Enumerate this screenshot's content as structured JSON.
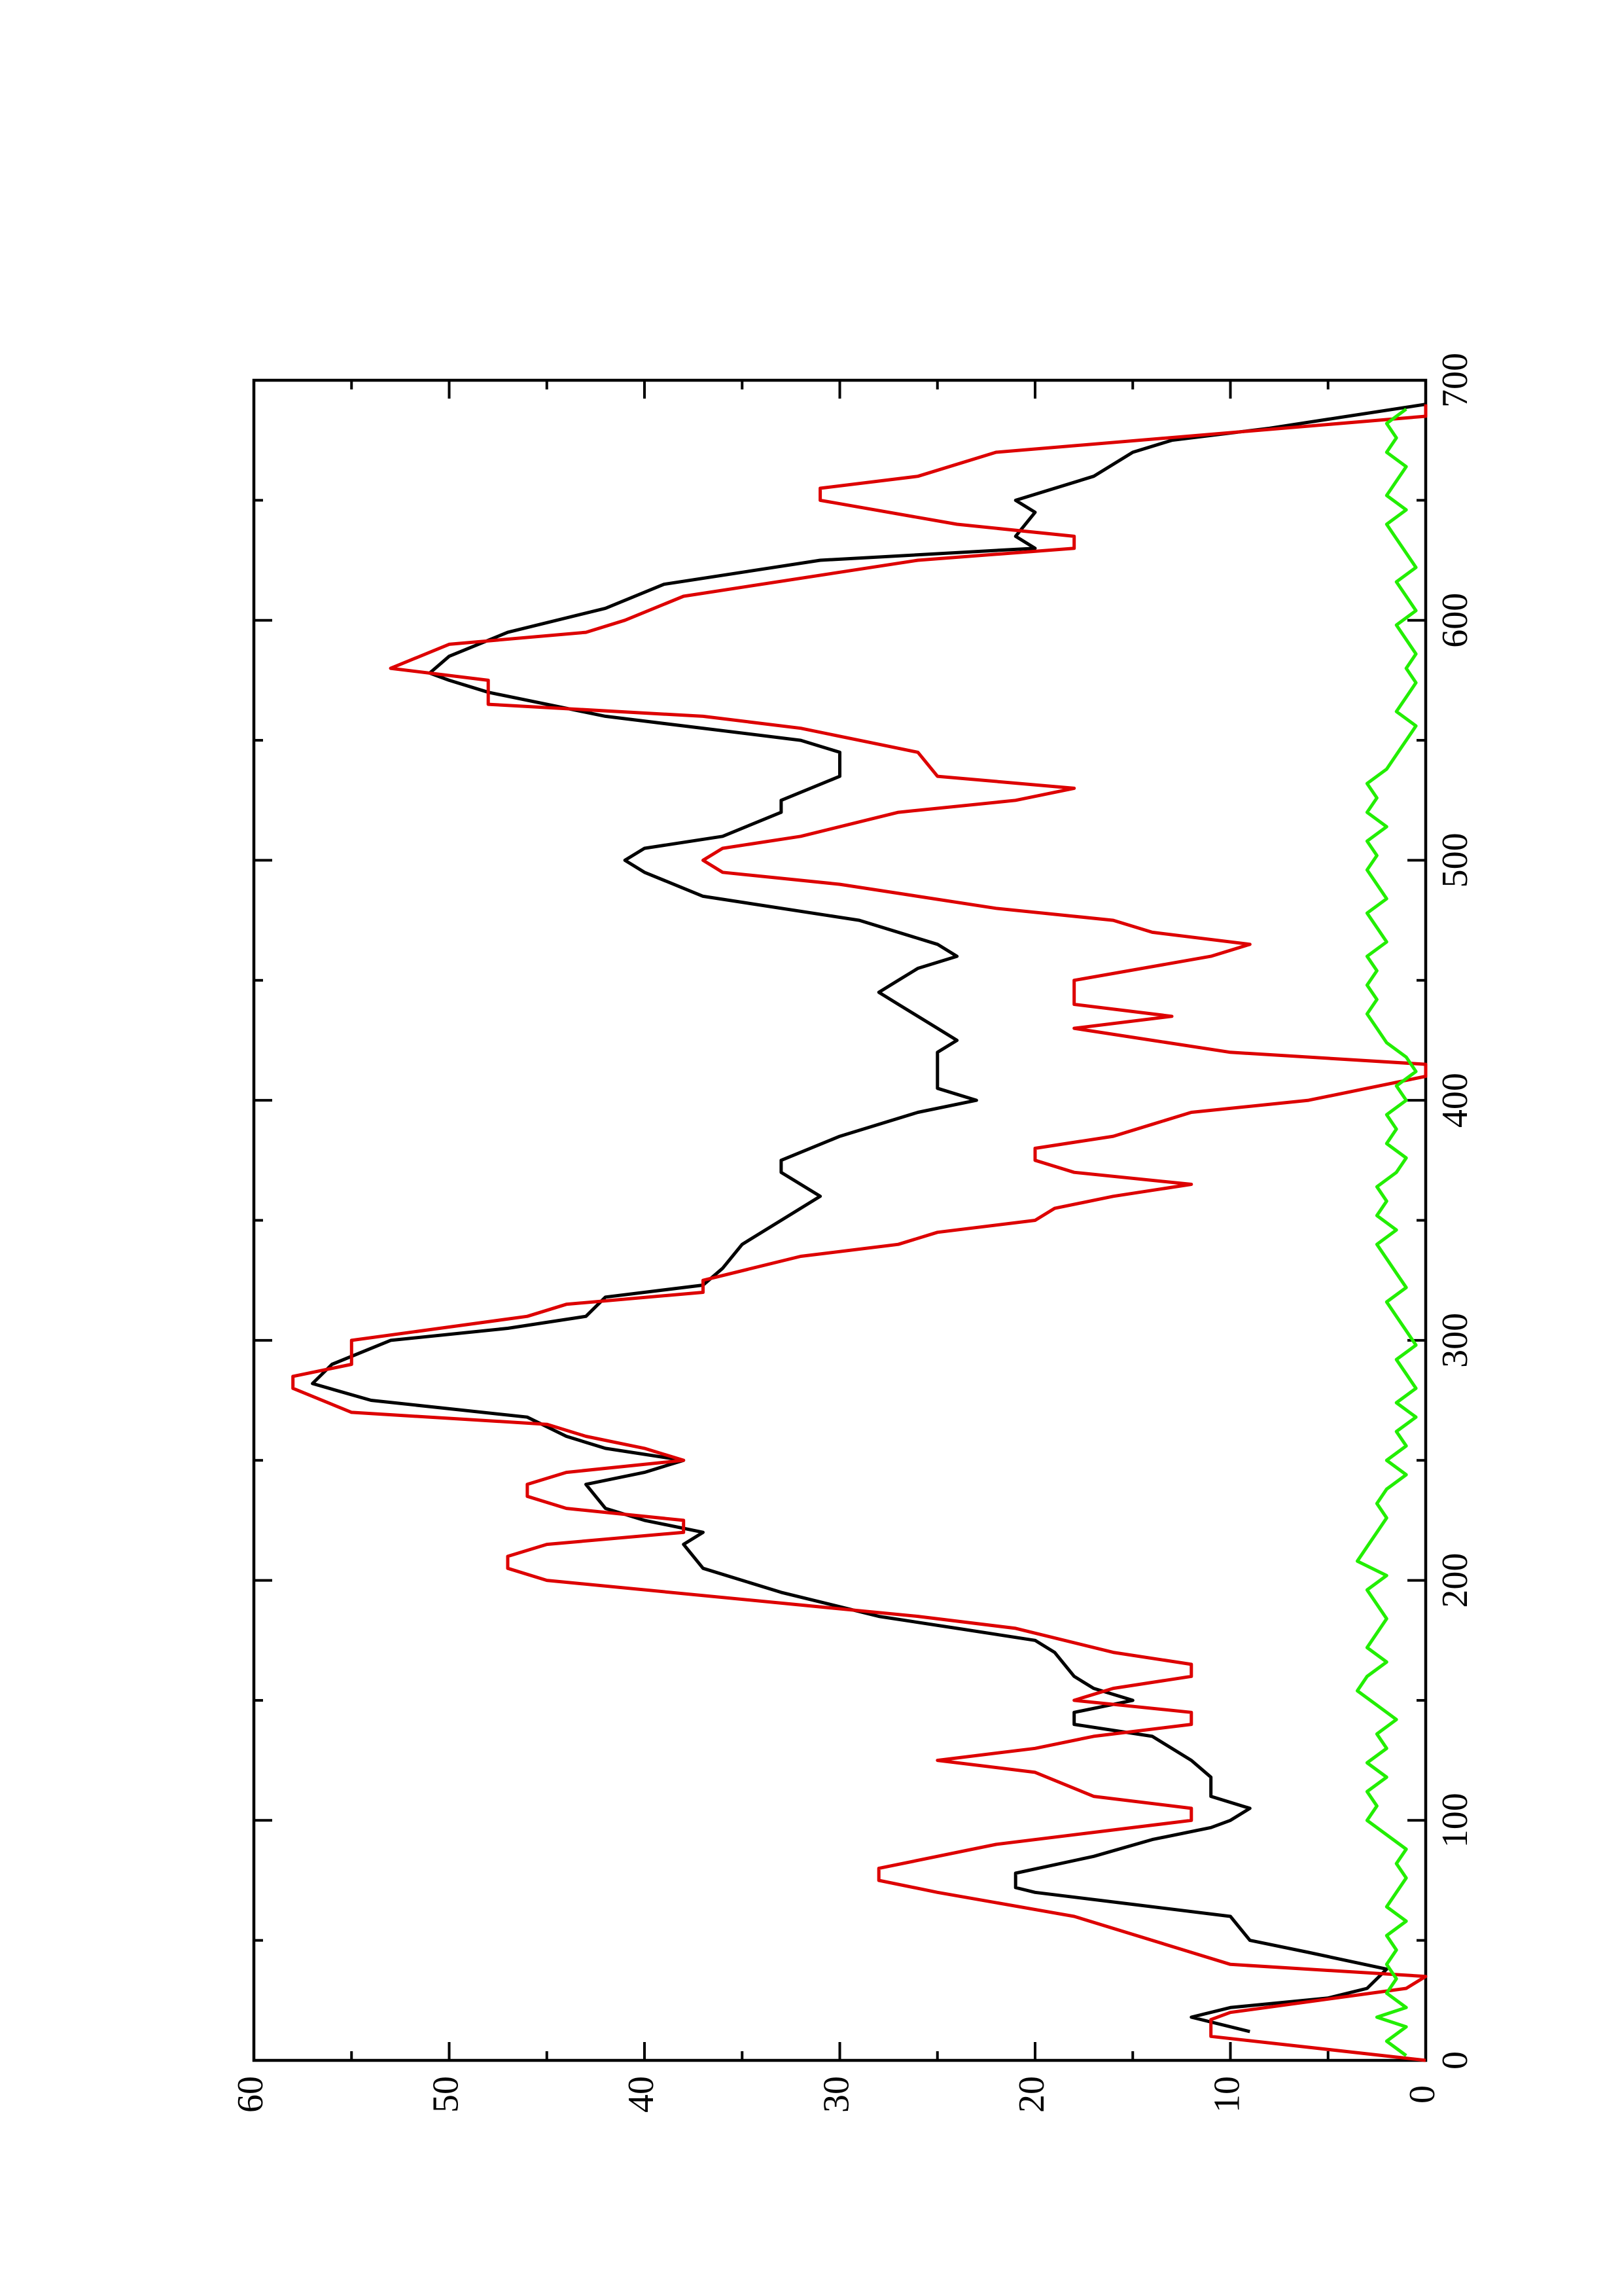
{
  "chart_data": {
    "type": "line",
    "xlim": [
      0,
      700
    ],
    "xticks": [
      0,
      100,
      200,
      300,
      400,
      500,
      600,
      700
    ],
    "xminorticks": [
      50,
      150,
      250,
      350,
      450,
      550,
      650
    ],
    "ylim": [
      0,
      60
    ],
    "yticks": [
      0,
      10,
      20,
      30,
      40,
      50,
      60
    ],
    "yminorticks": [
      5,
      15,
      25,
      35,
      45,
      55
    ],
    "rotated": true,
    "series": [
      {
        "color": "#000000",
        "x": [
          12,
          18,
          22,
          26,
          30,
          38,
          45,
          50,
          60,
          65,
          70,
          72,
          78,
          85,
          92,
          97,
          100,
          105,
          110,
          118,
          125,
          135,
          140,
          145,
          150,
          155,
          160,
          170,
          175,
          180,
          185,
          195,
          205,
          215,
          220,
          225,
          230,
          240,
          245,
          250,
          255,
          260,
          268,
          275,
          282,
          290,
          300,
          305,
          310,
          318,
          323,
          330,
          340,
          350,
          360,
          370,
          375,
          385,
          395,
          400,
          405,
          410,
          415,
          420,
          425,
          430,
          440,
          445,
          450,
          455,
          460,
          465,
          475,
          485,
          495,
          500,
          505,
          510,
          520,
          525,
          535,
          545,
          550,
          560,
          570,
          575,
          578,
          585,
          595,
          605,
          615,
          625,
          630,
          635,
          645,
          650,
          660,
          670,
          675,
          680,
          690
        ],
        "values": [
          9,
          12,
          10,
          5,
          3,
          2,
          6,
          9,
          10,
          15,
          20,
          21,
          21,
          17,
          14,
          11,
          10,
          9,
          11,
          11,
          12,
          14,
          18,
          18,
          15,
          17,
          18,
          19,
          20,
          24,
          28,
          33,
          37,
          38,
          37,
          40,
          42,
          43,
          40,
          38,
          42,
          44,
          46,
          54,
          57,
          56,
          53,
          47,
          43,
          42,
          37,
          36,
          35,
          33,
          31,
          33,
          33,
          30,
          26,
          23,
          25,
          25,
          25,
          25,
          24,
          25,
          27,
          28,
          27,
          26,
          24,
          25,
          29,
          37,
          40,
          41,
          40,
          36,
          33,
          33,
          30,
          30,
          32,
          42,
          48,
          50,
          51,
          50,
          47,
          42,
          39,
          31,
          20,
          21,
          20,
          21,
          17,
          15,
          13,
          8,
          0
        ]
      },
      {
        "color": "#dd0000",
        "x": [
          0,
          10,
          17,
          20,
          30,
          35,
          40,
          45,
          60,
          70,
          75,
          80,
          90,
          95,
          100,
          105,
          110,
          120,
          125,
          130,
          135,
          140,
          145,
          150,
          155,
          160,
          165,
          170,
          180,
          185,
          200,
          205,
          210,
          215,
          220,
          225,
          230,
          235,
          240,
          245,
          250,
          255,
          260,
          265,
          270,
          280,
          285,
          290,
          300,
          310,
          315,
          320,
          325,
          335,
          340,
          345,
          350,
          355,
          360,
          365,
          370,
          375,
          380,
          385,
          390,
          395,
          400,
          410,
          415,
          420,
          425,
          430,
          435,
          440,
          450,
          460,
          465,
          470,
          475,
          480,
          490,
          495,
          500,
          505,
          510,
          520,
          525,
          530,
          535,
          545,
          555,
          560,
          565,
          575,
          580,
          590,
          595,
          600,
          610,
          625,
          630,
          635,
          640,
          650,
          655,
          660,
          670,
          685,
          690
        ],
        "values": [
          0,
          11,
          11,
          10,
          1,
          0,
          10,
          12,
          18,
          25,
          28,
          28,
          22,
          17,
          12,
          12,
          17,
          20,
          25,
          20,
          17,
          12,
          12,
          18,
          16,
          12,
          12,
          16,
          21,
          26,
          45,
          47,
          47,
          45,
          38,
          38,
          44,
          46,
          46,
          44,
          38,
          40,
          43,
          45,
          55,
          58,
          58,
          55,
          55,
          46,
          44,
          37,
          37,
          32,
          27,
          25,
          20,
          19,
          16,
          12,
          18,
          20,
          20,
          16,
          14,
          12,
          6,
          0,
          0,
          10,
          14,
          18,
          13,
          18,
          18,
          11,
          9,
          14,
          16,
          22,
          30,
          36,
          37,
          36,
          32,
          27,
          21,
          18,
          25,
          26,
          32,
          37,
          48,
          48,
          53,
          50,
          43,
          41,
          38,
          26,
          18,
          18,
          24,
          31,
          31,
          26,
          22,
          0,
          0
        ]
      },
      {
        "color": "#22ee00",
        "x": [
          2,
          8,
          14,
          18,
          22,
          28,
          34,
          40,
          46,
          52,
          58,
          64,
          70,
          76,
          82,
          88,
          94,
          100,
          106,
          112,
          118,
          124,
          130,
          136,
          142,
          148,
          154,
          160,
          166,
          172,
          178,
          184,
          190,
          196,
          202,
          208,
          214,
          220,
          226,
          232,
          238,
          244,
          250,
          256,
          262,
          268,
          274,
          280,
          286,
          292,
          298,
          304,
          310,
          316,
          322,
          328,
          334,
          340,
          346,
          352,
          358,
          364,
          370,
          376,
          382,
          388,
          394,
          400,
          406,
          412,
          418,
          424,
          430,
          436,
          442,
          448,
          454,
          460,
          466,
          472,
          478,
          484,
          490,
          496,
          502,
          508,
          514,
          520,
          526,
          532,
          538,
          544,
          550,
          556,
          562,
          568,
          574,
          580,
          586,
          592,
          598,
          604,
          610,
          616,
          622,
          628,
          634,
          640,
          646,
          652,
          658,
          664,
          670,
          676,
          682,
          688
        ],
        "values": [
          1,
          2,
          1,
          2.5,
          1,
          2,
          1.5,
          2,
          1.5,
          2,
          1,
          2,
          1.5,
          1,
          1.5,
          1,
          2,
          3,
          2.5,
          3,
          2,
          3,
          2,
          2.5,
          1.5,
          2.5,
          3.5,
          3,
          2,
          3,
          2.5,
          2,
          2.5,
          3,
          2,
          3.5,
          3,
          2.5,
          2,
          2.5,
          2,
          1,
          2,
          1,
          1.5,
          0.5,
          1.5,
          0.5,
          1,
          1.5,
          0.5,
          1,
          1.5,
          2,
          1,
          1.5,
          2,
          2.5,
          1.5,
          2.5,
          2,
          2.5,
          1.5,
          1,
          2,
          1.5,
          2,
          1,
          1.5,
          0.5,
          1,
          2,
          2.5,
          3,
          2.5,
          3,
          2.5,
          3,
          2,
          2.5,
          3,
          2,
          2.5,
          3,
          2.5,
          3,
          2,
          3,
          2.5,
          3,
          2,
          1.5,
          1,
          0.5,
          1.5,
          1,
          0.5,
          1,
          0.5,
          1,
          1.5,
          0.5,
          1,
          1.5,
          0.5,
          1,
          1.5,
          2,
          1,
          2,
          1.5,
          1,
          2,
          1.5,
          2,
          1
        ]
      }
    ]
  }
}
